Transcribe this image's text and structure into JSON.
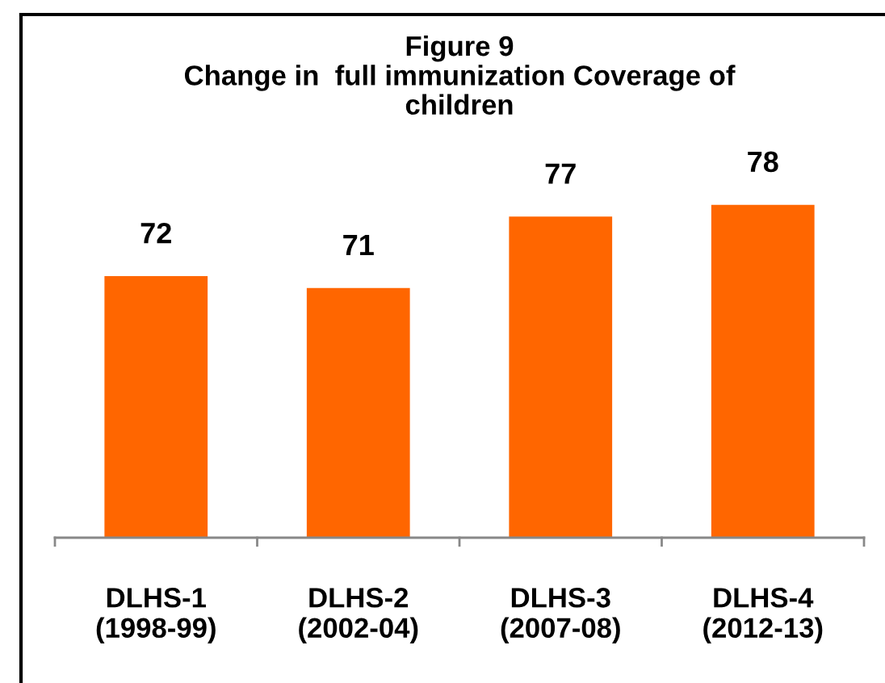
{
  "chart_data": {
    "type": "bar",
    "title": "Figure 9\nChange in  full immunization Coverage of\nchildren",
    "categories": [
      "DLHS-1\n(1998-99)",
      "DLHS-2\n(2002-04)",
      "DLHS-3\n(2007-08)",
      "DLHS-4\n(2012-13)"
    ],
    "values": [
      72,
      71,
      77,
      78
    ],
    "color": "#ff6600",
    "ylim": [
      50,
      94
    ],
    "data_labels": true
  }
}
